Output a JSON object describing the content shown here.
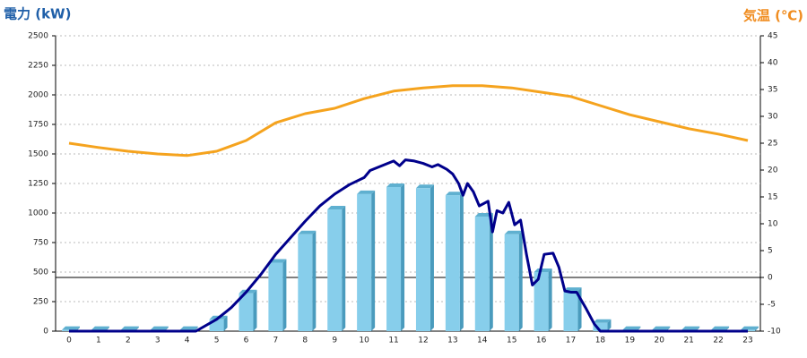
{
  "chart_data": {
    "type": "bar",
    "title": "電力 (kW)",
    "y2_title": "気温 (℃)",
    "categories": [
      "0",
      "1",
      "2",
      "3",
      "4",
      "5",
      "6",
      "7",
      "8",
      "9",
      "10",
      "11",
      "12",
      "13",
      "14",
      "15",
      "16",
      "17",
      "18",
      "19",
      "20",
      "21",
      "22",
      "23"
    ],
    "ylim": [
      0,
      2500
    ],
    "yticks": [
      0,
      250,
      500,
      750,
      1000,
      1250,
      1500,
      1750,
      2000,
      2250,
      2500
    ],
    "y2lim": [
      -10,
      45
    ],
    "y2ticks": [
      -10,
      -5,
      0,
      5,
      10,
      15,
      20,
      25,
      30,
      35,
      40,
      45
    ],
    "grid": true,
    "series": [
      {
        "type": "bar",
        "color": "#87ceeb",
        "values": [
          10,
          10,
          10,
          10,
          10,
          100,
          320,
          580,
          820,
          1030,
          1160,
          1220,
          1210,
          1150,
          970,
          820,
          500,
          340,
          70,
          10,
          10,
          10,
          10,
          10
        ]
      },
      {
        "type": "line",
        "color": "#00008b",
        "x": [
          0,
          4.3,
          5,
          5.5,
          6,
          6.5,
          7,
          7.5,
          8,
          8.5,
          9,
          9.5,
          10,
          10.2,
          10.5,
          11,
          11.2,
          11.4,
          11.7,
          12,
          12.3,
          12.5,
          12.8,
          13,
          13.2,
          13.35,
          13.5,
          13.7,
          13.9,
          14.2,
          14.35,
          14.5,
          14.7,
          14.9,
          15.1,
          15.3,
          15.5,
          15.7,
          15.9,
          16.1,
          16.4,
          16.6,
          16.8,
          17,
          17.2,
          17.5,
          17.8,
          18,
          23
        ],
        "values": [
          0,
          0,
          100,
          200,
          330,
          480,
          650,
          790,
          930,
          1060,
          1160,
          1240,
          1300,
          1360,
          1390,
          1440,
          1400,
          1450,
          1440,
          1420,
          1390,
          1410,
          1370,
          1330,
          1250,
          1150,
          1250,
          1180,
          1060,
          1100,
          840,
          1020,
          1000,
          1090,
          900,
          940,
          650,
          390,
          440,
          650,
          660,
          540,
          340,
          330,
          330,
          200,
          60,
          0,
          0
        ]
      },
      {
        "type": "line",
        "axis": "y2",
        "color": "#f5a31e",
        "values": [
          25,
          24.2,
          23.5,
          23,
          22.7,
          23.5,
          25.5,
          28.8,
          30.5,
          31.5,
          33.3,
          34.7,
          35.3,
          35.7,
          35.7,
          35.3,
          34.5,
          33.7,
          32,
          30.3,
          29,
          27.7,
          26.7,
          25.5
        ]
      }
    ]
  }
}
